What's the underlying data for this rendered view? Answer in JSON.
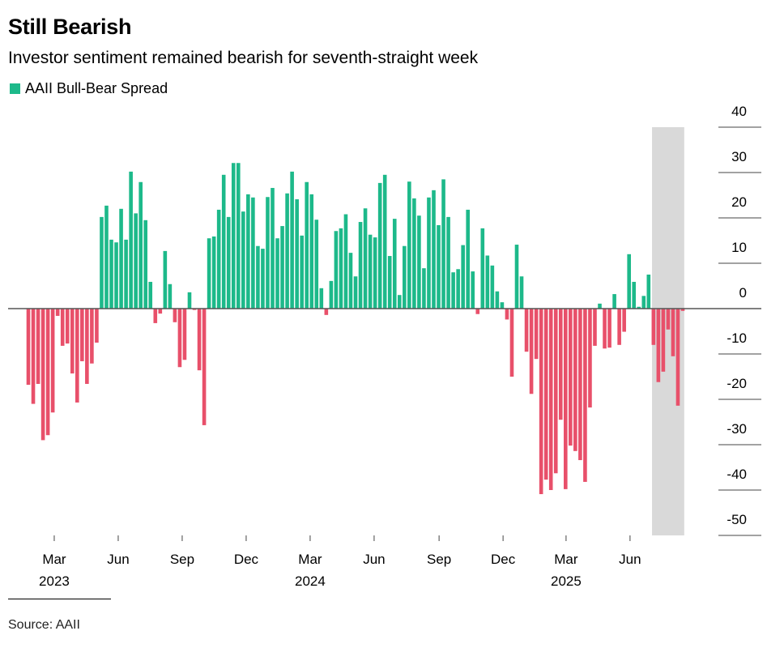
{
  "title": "Still Bearish",
  "subtitle": "Investor sentiment remained bearish for seventh-straight week",
  "source": "Source: AAII",
  "colors": {
    "positive": "#1db98a",
    "negative": "#e8506a",
    "shade": "#d9d9d9",
    "axis": "#555555"
  },
  "chart_data": {
    "type": "bar",
    "title": "Still Bearish",
    "series": [
      {
        "name": "AAII Bull-Bear Spread",
        "values": [
          -16.8,
          -21,
          -16.6,
          -29,
          -27.9,
          -22.9,
          -1.6,
          -8.2,
          -7.7,
          -14.3,
          -20.7,
          -11.6,
          -16.6,
          -12.1,
          -7.5,
          20.2,
          22.7,
          15.2,
          14.6,
          22,
          15.2,
          30.2,
          21,
          27.9,
          19.5,
          5.9,
          -3.2,
          -1.1,
          12.7,
          5.4,
          -3.0,
          -12.9,
          -11.3,
          3.6,
          -0.3,
          -13.6,
          -25.7,
          15.5,
          15.9,
          21.8,
          29.5,
          20.2,
          32.1,
          32.1,
          21.4,
          25.2,
          24.5,
          13.8,
          13.2,
          24.6,
          26.6,
          15.5,
          18.2,
          25.4,
          30.2,
          24.1,
          16.1,
          27.9,
          25.2,
          19.6,
          4.5,
          -1.4,
          6.1,
          17.1,
          17.7,
          20.8,
          12.3,
          7.1,
          19.1,
          22.1,
          16.3,
          15.7,
          27.7,
          29.5,
          11.6,
          19.8,
          3.0,
          13.8,
          28,
          24.3,
          20.5,
          8.9,
          24.5,
          26.1,
          18.4,
          28.5,
          20.2,
          8.0,
          8.7,
          14,
          21.8,
          8.2,
          -1.2,
          17.7,
          11.7,
          9.5,
          3.8,
          1.4,
          -2.4,
          -15,
          14.1,
          7.1,
          -9.5,
          -18.8,
          -11.1,
          -40.9,
          -37.7,
          -40,
          -36.3,
          -24.5,
          -39.8,
          -30.2,
          -31.4,
          -33.4,
          -38.2,
          -21.8,
          -8.2,
          1.1,
          -8.8,
          -8.6,
          3.2,
          -8.0,
          -5.1,
          12,
          5.9,
          0.4,
          2.8,
          7.5,
          -8.0,
          -16.2,
          -13.9,
          -4.6,
          -10.5,
          -21.4,
          -0.5
        ]
      }
    ],
    "x_unit": "week index",
    "xticks": [
      {
        "label": "Mar",
        "year": "2023",
        "at": 5.3
      },
      {
        "label": "Jun",
        "year": "",
        "at": 18.4
      },
      {
        "label": "Sep",
        "year": "",
        "at": 31.5
      },
      {
        "label": "Dec",
        "year": "",
        "at": 44.6
      },
      {
        "label": "Mar",
        "year": "2024",
        "at": 57.7
      },
      {
        "label": "Jun",
        "year": "",
        "at": 70.8
      },
      {
        "label": "Sep",
        "year": "",
        "at": 84.1
      },
      {
        "label": "Dec",
        "year": "",
        "at": 97.2
      },
      {
        "label": "Mar",
        "year": "2025",
        "at": 110.1
      },
      {
        "label": "Jun",
        "year": "",
        "at": 123.2
      }
    ],
    "yticks": [
      40,
      30,
      20,
      10,
      0,
      -10,
      -20,
      -30,
      -40,
      -50
    ],
    "ylim": [
      -50,
      40
    ],
    "highlight_range": [
      127.7,
      134.3
    ],
    "legend": [
      "AAII Bull-Bear Spread"
    ],
    "legend_position": "top-left",
    "y_axis_side": "right",
    "xlabel": "",
    "ylabel": ""
  }
}
